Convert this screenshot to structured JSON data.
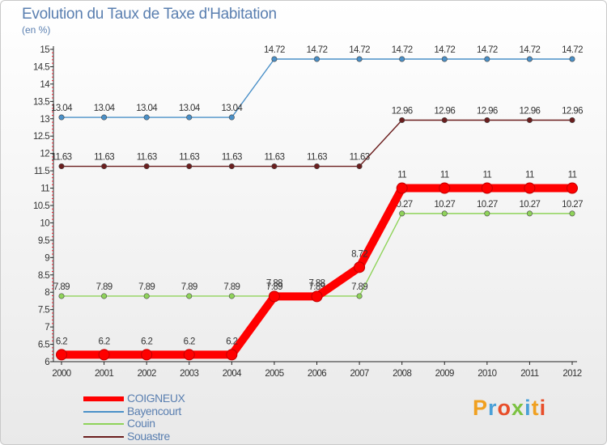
{
  "chart_data": {
    "type": "line",
    "title": "Evolution du Taux de Taxe d'Habitation",
    "subtitle": "(en %)",
    "x": [
      "2000",
      "2001",
      "2002",
      "2003",
      "2004",
      "2005",
      "2006",
      "2007",
      "2008",
      "2009",
      "2010",
      "2011",
      "2012"
    ],
    "ylim": [
      6,
      15
    ],
    "yticks": [
      "6",
      "6.5",
      "7",
      "7.5",
      "8",
      "8.5",
      "9",
      "9.5",
      "10",
      "10.5",
      "11",
      "11.5",
      "12",
      "12.5",
      "13",
      "13.5",
      "14",
      "14.5",
      "15"
    ],
    "grid": false,
    "legend_position": "bottom-left",
    "series": [
      {
        "name": "Bayencourt",
        "color": "#4a90c8",
        "values": [
          13.04,
          13.04,
          13.04,
          13.04,
          13.04,
          14.72,
          14.72,
          14.72,
          14.72,
          14.72,
          14.72,
          14.72,
          14.72
        ],
        "labels": [
          "13.04",
          "13.04",
          "13.04",
          "13.04",
          "13.04",
          "14.72",
          "14.72",
          "14.72",
          "14.72",
          "14.72",
          "14.72",
          "14.72",
          "14.72"
        ]
      },
      {
        "name": "Souastre",
        "color": "#6b1e1e",
        "values": [
          11.63,
          11.63,
          11.63,
          11.63,
          11.63,
          11.63,
          11.63,
          11.63,
          12.96,
          12.96,
          12.96,
          12.96,
          12.96
        ],
        "labels": [
          "11.63",
          "11.63",
          "11.63",
          "11.63",
          "11.63",
          "11.63",
          "11.63",
          "11.63",
          "12.96",
          "12.96",
          "12.96",
          "12.96",
          "12.96"
        ]
      },
      {
        "name": "Couin",
        "color": "#8fd35a",
        "values": [
          7.89,
          7.89,
          7.89,
          7.89,
          7.89,
          7.89,
          7.89,
          7.89,
          10.27,
          10.27,
          10.27,
          10.27,
          10.27
        ],
        "labels": [
          "7.89",
          "7.89",
          "7.89",
          "7.89",
          "7.89",
          "7.89",
          "7.89",
          "7.89",
          "10.27",
          "10.27",
          "10.27",
          "10.27",
          "10.27"
        ]
      },
      {
        "name": "COIGNEUX",
        "color": "#ff0000",
        "values": [
          6.2,
          6.2,
          6.2,
          6.2,
          6.2,
          7.88,
          7.88,
          8.72,
          11,
          11,
          11,
          11,
          11
        ],
        "labels": [
          "6.2",
          "6.2",
          "6.2",
          "6.2",
          "6.2",
          "7.88",
          "7.88",
          "8.72",
          "11",
          "11",
          "11",
          "11",
          "11"
        ]
      }
    ]
  },
  "legend": [
    {
      "name": "COIGNEUX",
      "color": "#ff0000"
    },
    {
      "name": "Bayencourt",
      "color": "#4a90c8"
    },
    {
      "name": "Couin",
      "color": "#8fd35a"
    },
    {
      "name": "Souastre",
      "color": "#6b1e1e"
    }
  ],
  "logo": {
    "text": "Proxiti",
    "letters": [
      {
        "ch": "P",
        "color": "#f0a020"
      },
      {
        "ch": "r",
        "color": "#4aa0d8"
      },
      {
        "ch": "o",
        "color": "#e84e2a"
      },
      {
        "ch": "x",
        "color": "#7cc242"
      },
      {
        "ch": "i",
        "color": "#4aa0d8"
      },
      {
        "ch": "t",
        "color": "#f0a020"
      },
      {
        "ch": "i",
        "color": "#e84e2a"
      }
    ]
  }
}
